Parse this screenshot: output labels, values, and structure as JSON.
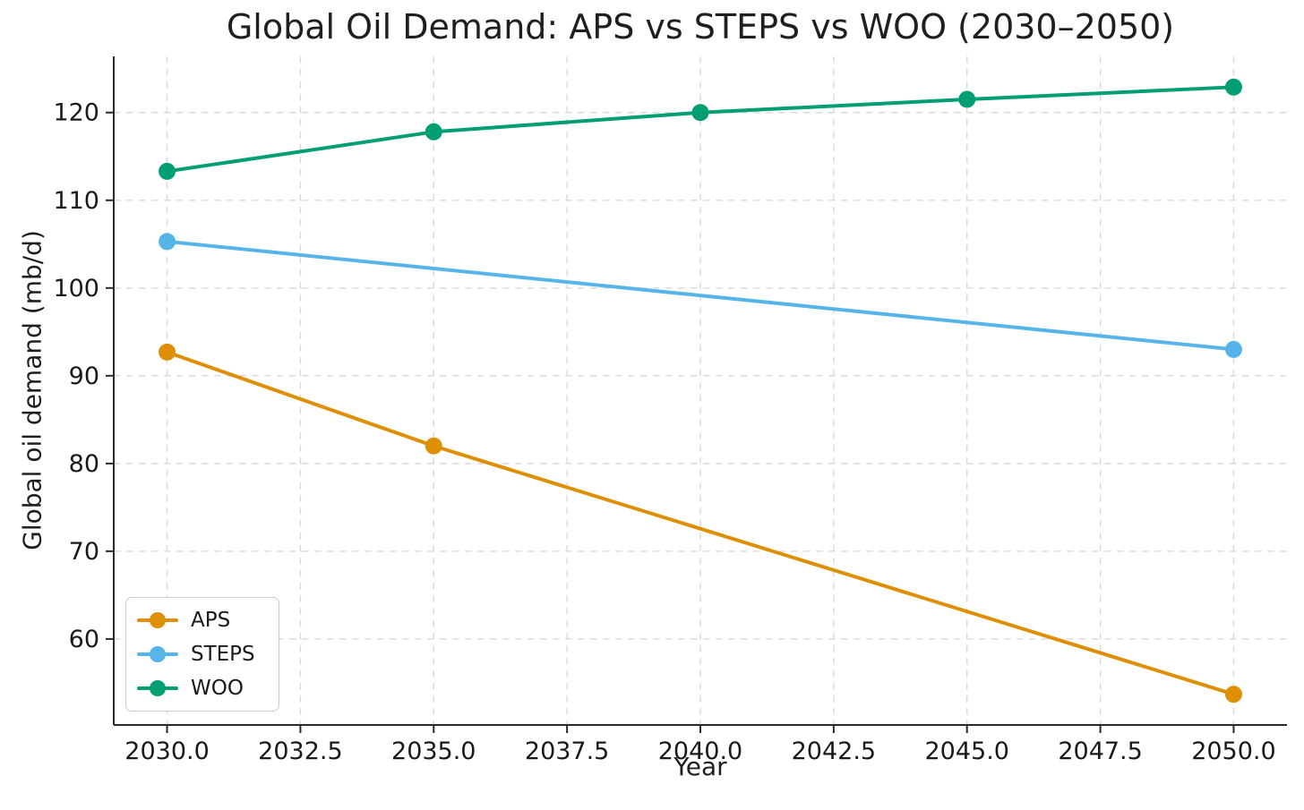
{
  "chart_data": {
    "type": "line",
    "title": "Global Oil Demand: APS vs STEPS vs WOO (2030–2050)",
    "xlabel": "Year",
    "ylabel": "Global oil demand (mb/d)",
    "xlim": [
      2029.0,
      2051.0
    ],
    "ylim": [
      50.2,
      126.4
    ],
    "grid": true,
    "grid_style": "dashed",
    "legend_position": "lower left",
    "colors": {
      "background": "#ffffff",
      "text": "#1a1a1a",
      "grid": "#d9d9d9",
      "spine": "#2a2a2a",
      "aps": "#DE8F05",
      "steps": "#56B4E9",
      "woo": "#029E73"
    },
    "xticks": [
      {
        "value": 2030.0,
        "label": "2030.0"
      },
      {
        "value": 2032.5,
        "label": "2032.5"
      },
      {
        "value": 2035.0,
        "label": "2035.0"
      },
      {
        "value": 2037.5,
        "label": "2037.5"
      },
      {
        "value": 2040.0,
        "label": "2040.0"
      },
      {
        "value": 2042.5,
        "label": "2042.5"
      },
      {
        "value": 2045.0,
        "label": "2045.0"
      },
      {
        "value": 2047.5,
        "label": "2047.5"
      },
      {
        "value": 2050.0,
        "label": "2050.0"
      }
    ],
    "yticks": [
      {
        "value": 60,
        "label": "60"
      },
      {
        "value": 70,
        "label": "70"
      },
      {
        "value": 80,
        "label": "80"
      },
      {
        "value": 90,
        "label": "90"
      },
      {
        "value": 100,
        "label": "100"
      },
      {
        "value": 110,
        "label": "110"
      },
      {
        "value": 120,
        "label": "120"
      }
    ],
    "series": [
      {
        "name": "APS",
        "color": "#DE8F05",
        "x": [
          2030,
          2035,
          2050
        ],
        "y": [
          92.7,
          82.0,
          53.7
        ]
      },
      {
        "name": "STEPS",
        "color": "#56B4E9",
        "x": [
          2030,
          2050
        ],
        "y": [
          105.3,
          93.0
        ]
      },
      {
        "name": "WOO",
        "color": "#029E73",
        "x": [
          2030,
          2035,
          2040,
          2045,
          2050
        ],
        "y": [
          113.3,
          117.8,
          120.0,
          121.5,
          122.9
        ]
      }
    ]
  }
}
